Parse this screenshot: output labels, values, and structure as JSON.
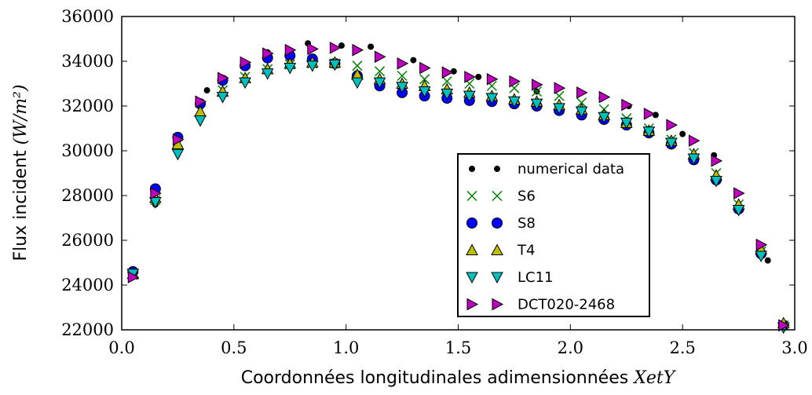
{
  "chart_data": {
    "type": "scatter",
    "title": "",
    "xlabel": "Coordonnées longitudinales adimensionnées",
    "xlabel_math": "XetY",
    "ylabel": "Flux incident",
    "ylabel_math": "(W/m²)",
    "xlim": [
      0.0,
      3.0
    ],
    "ylim": [
      22000,
      36000
    ],
    "xticks": [
      0.0,
      0.5,
      1.0,
      1.5,
      2.0,
      2.5,
      3.0
    ],
    "xtick_labels": [
      "0.0",
      "0.5",
      "1.0",
      "1.5",
      "2.0",
      "2.5",
      "3.0"
    ],
    "yticks": [
      22000,
      24000,
      26000,
      28000,
      30000,
      32000,
      34000,
      36000
    ],
    "ytick_labels": [
      "22000",
      "24000",
      "26000",
      "28000",
      "30000",
      "32000",
      "34000",
      "36000"
    ],
    "grid": false,
    "legend_position": "lower-right",
    "series": [
      {
        "name": "numerical data",
        "marker": "dot",
        "color": "#000000",
        "x": [
          0.05,
          0.15,
          0.25,
          0.38,
          0.65,
          0.83,
          0.98,
          1.11,
          1.3,
          1.48,
          1.59,
          1.85,
          2.14,
          2.26,
          2.38,
          2.5,
          2.64,
          2.88
        ],
        "y": [
          24600,
          27600,
          30600,
          32700,
          34400,
          34800,
          34700,
          34650,
          34050,
          33550,
          33300,
          32650,
          32350,
          32000,
          31600,
          30750,
          29800,
          25100
        ]
      },
      {
        "name": "S6",
        "marker": "x",
        "color": "#008000",
        "x": [
          0.05,
          0.15,
          0.25,
          0.35,
          0.45,
          0.55,
          0.65,
          0.75,
          0.85,
          0.95,
          1.05,
          1.15,
          1.25,
          1.35,
          1.45,
          1.55,
          1.65,
          1.75,
          1.85,
          1.95,
          2.05,
          2.15,
          2.25,
          2.35,
          2.45,
          2.55,
          2.65,
          2.75,
          2.85,
          2.95
        ],
        "y": [
          24450,
          27800,
          30400,
          31800,
          32700,
          33300,
          33650,
          33850,
          33900,
          33900,
          33800,
          33550,
          33350,
          33200,
          33100,
          33000,
          32900,
          32800,
          32650,
          32450,
          32150,
          31850,
          31450,
          31000,
          30500,
          29900,
          29000,
          27600,
          25500,
          22200
        ]
      },
      {
        "name": "S8",
        "marker": "circle",
        "color": "#0000ff",
        "x": [
          0.05,
          0.15,
          0.25,
          0.35,
          0.45,
          0.55,
          0.65,
          0.75,
          0.85,
          0.95,
          1.05,
          1.15,
          1.25,
          1.35,
          1.45,
          1.55,
          1.65,
          1.75,
          1.85,
          1.95,
          2.05,
          2.15,
          2.25,
          2.35,
          2.45,
          2.55,
          2.65,
          2.75,
          2.85,
          2.95
        ],
        "y": [
          24600,
          28300,
          30600,
          32100,
          33150,
          33800,
          34150,
          34250,
          34100,
          33900,
          33350,
          32900,
          32600,
          32450,
          32350,
          32250,
          32200,
          32100,
          32000,
          31800,
          31600,
          31400,
          31150,
          30800,
          30300,
          29600,
          28700,
          27400,
          25400,
          22200
        ]
      },
      {
        "name": "T4",
        "marker": "triangle-up",
        "color": "#bfbf00",
        "x": [
          0.05,
          0.15,
          0.25,
          0.35,
          0.45,
          0.55,
          0.65,
          0.75,
          0.85,
          0.95,
          1.05,
          1.15,
          1.25,
          1.35,
          1.45,
          1.55,
          1.65,
          1.75,
          1.85,
          1.95,
          2.05,
          2.15,
          2.25,
          2.35,
          2.45,
          2.55,
          2.65,
          2.75,
          2.85,
          2.95
        ],
        "y": [
          24500,
          27900,
          30300,
          31750,
          32650,
          33250,
          33650,
          33900,
          33950,
          33950,
          33400,
          33200,
          33000,
          32900,
          32750,
          32600,
          32450,
          32300,
          32200,
          32050,
          31850,
          31600,
          31250,
          30900,
          30450,
          29850,
          28900,
          27600,
          25600,
          22300
        ]
      },
      {
        "name": "LC11",
        "marker": "triangle-down",
        "color": "#00bfbf",
        "x": [
          0.05,
          0.15,
          0.25,
          0.35,
          0.45,
          0.55,
          0.65,
          0.75,
          0.85,
          0.95,
          1.05,
          1.15,
          1.25,
          1.35,
          1.45,
          1.55,
          1.65,
          1.75,
          1.85,
          1.95,
          2.05,
          2.15,
          2.25,
          2.35,
          2.45,
          2.55,
          2.65,
          2.75,
          2.85,
          2.95
        ],
        "y": [
          24500,
          27700,
          29850,
          31350,
          32400,
          33050,
          33450,
          33700,
          33800,
          33850,
          33050,
          33050,
          32850,
          32650,
          32550,
          32450,
          32350,
          32200,
          32100,
          31900,
          31750,
          31500,
          31250,
          30850,
          30350,
          29650,
          28650,
          27350,
          25300,
          22100
        ]
      },
      {
        "name": "DCT020-2468",
        "marker": "triangle-right",
        "color": "#bf00bf",
        "x": [
          0.05,
          0.15,
          0.25,
          0.35,
          0.45,
          0.55,
          0.65,
          0.75,
          0.85,
          0.95,
          1.05,
          1.15,
          1.25,
          1.35,
          1.45,
          1.55,
          1.65,
          1.75,
          1.85,
          1.95,
          2.05,
          2.15,
          2.25,
          2.35,
          2.45,
          2.55,
          2.65,
          2.75,
          2.85,
          2.95
        ],
        "y": [
          24350,
          28100,
          30500,
          32200,
          33250,
          33950,
          34350,
          34500,
          34550,
          34600,
          34500,
          34200,
          33900,
          33700,
          33500,
          33300,
          33200,
          33100,
          32950,
          32800,
          32600,
          32400,
          32050,
          31650,
          31150,
          30450,
          29550,
          28100,
          25800,
          22200
        ]
      }
    ]
  }
}
